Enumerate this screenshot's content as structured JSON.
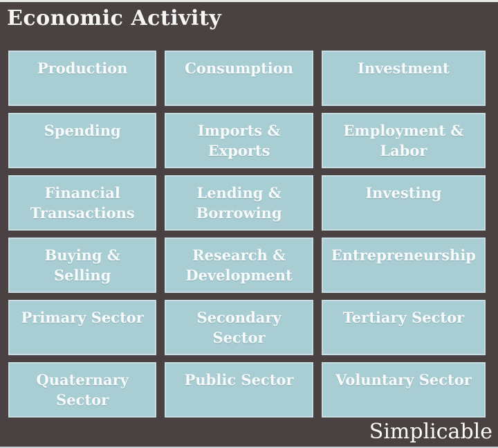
{
  "header": {
    "title": "Economic Activity"
  },
  "grid": {
    "cells": [
      "Production",
      "Consumption",
      "Investment",
      "Spending",
      "Imports & Exports",
      "Employment & Labor",
      "Financial Transactions",
      "Lending & Borrowing",
      "Investing",
      "Buying & Selling",
      "Research & Development",
      "Entrepreneurship",
      "Primary Sector",
      "Secondary Sector",
      "Tertiary Sector",
      "Quaternary Sector",
      "Public Sector",
      "Voluntary Sector"
    ]
  },
  "footer": {
    "brand": "Simplicable"
  },
  "colors": {
    "background": "#4a4242",
    "cell_fill": "#a8cdd3",
    "cell_border": "#c6dde1",
    "cell_text": "#f8fbfb",
    "title_text": "#f6f6f4"
  }
}
